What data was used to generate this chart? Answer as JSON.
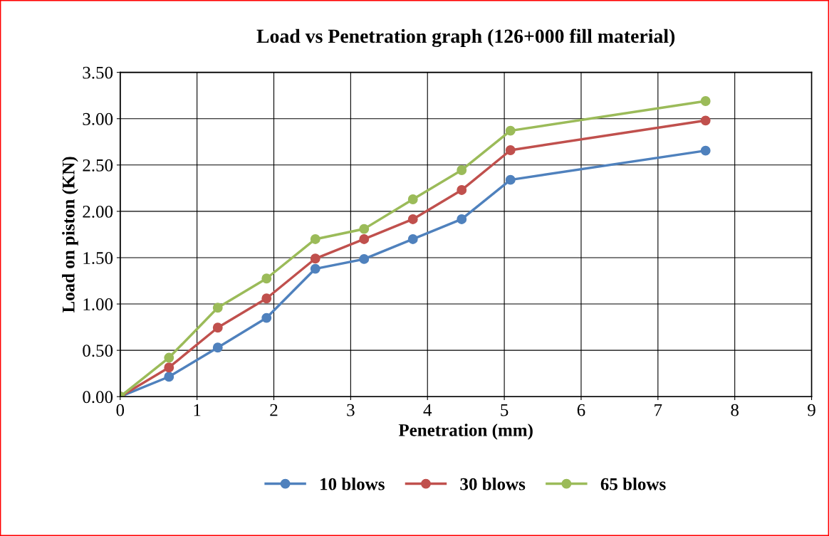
{
  "chart_data": {
    "type": "line",
    "title": "Load vs Penetration graph (126+000 fill material)",
    "xlabel": "Penetration (mm)",
    "ylabel": "Load on piston (KN)",
    "x": [
      0,
      0.635,
      1.27,
      1.905,
      2.54,
      3.175,
      3.81,
      4.445,
      5.08,
      7.62
    ],
    "series": [
      {
        "name": "10 blows",
        "color": "#4f81bd",
        "values": [
          0,
          0.215,
          0.53,
          0.85,
          1.38,
          1.485,
          1.7,
          1.915,
          2.34,
          2.655
        ]
      },
      {
        "name": "30 blows",
        "color": "#c0504d",
        "values": [
          0,
          0.315,
          0.745,
          1.06,
          1.49,
          1.7,
          1.915,
          2.23,
          2.66,
          2.98
        ]
      },
      {
        "name": "65 blows",
        "color": "#9bbb59",
        "values": [
          0,
          0.42,
          0.96,
          1.275,
          1.7,
          1.81,
          2.13,
          2.445,
          2.87,
          3.19
        ]
      }
    ],
    "xlim": [
      0,
      9
    ],
    "xticks": [
      0,
      1,
      2,
      3,
      4,
      5,
      6,
      7,
      8,
      9
    ],
    "ylim": [
      0,
      3.5
    ],
    "yticks": [
      {
        "value": 0,
        "label": "0.00"
      },
      {
        "value": 0.5,
        "label": "0.50"
      },
      {
        "value": 1,
        "label": "1.00"
      },
      {
        "value": 1.5,
        "label": "1.50"
      },
      {
        "value": 2,
        "label": "2.00"
      },
      {
        "value": 2.5,
        "label": "2.50"
      },
      {
        "value": 3,
        "label": "3.00"
      },
      {
        "value": 3.5,
        "label": "3.50"
      }
    ],
    "grid": true,
    "legend": "bottom",
    "marker": "circle",
    "line_style": "solid"
  }
}
